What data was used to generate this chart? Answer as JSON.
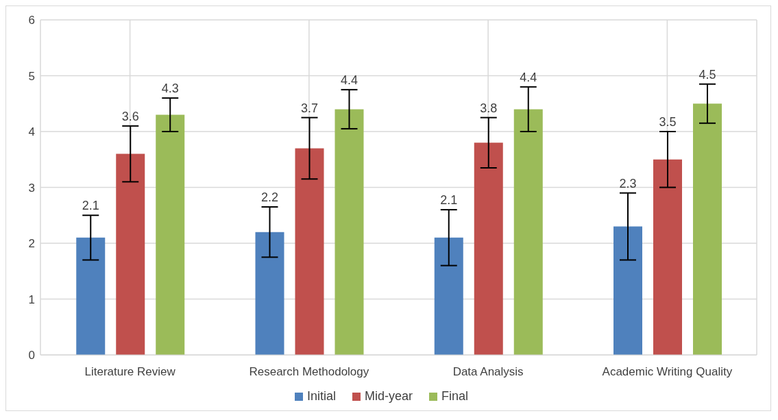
{
  "chart_data": {
    "type": "bar",
    "categories": [
      "Literature Review",
      "Research Methodology",
      "Data Analysis",
      "Academic Writing Quality"
    ],
    "series": [
      {
        "name": "Initial",
        "color": "#4f81bd",
        "values": [
          2.1,
          2.2,
          2.1,
          2.3
        ],
        "errors": [
          0.4,
          0.45,
          0.5,
          0.6
        ]
      },
      {
        "name": "Mid-year",
        "color": "#c0504d",
        "values": [
          3.6,
          3.7,
          3.8,
          3.5
        ],
        "errors": [
          0.5,
          0.55,
          0.45,
          0.5
        ]
      },
      {
        "name": "Final",
        "color": "#9bbb59",
        "values": [
          4.3,
          4.4,
          4.4,
          4.5
        ],
        "errors": [
          0.3,
          0.35,
          0.4,
          0.35
        ]
      }
    ],
    "ylim": [
      0,
      6
    ],
    "yticks": [
      0,
      1,
      2,
      3,
      4,
      5,
      6
    ],
    "grid": true,
    "legend": "bottom",
    "data_labels": true
  }
}
